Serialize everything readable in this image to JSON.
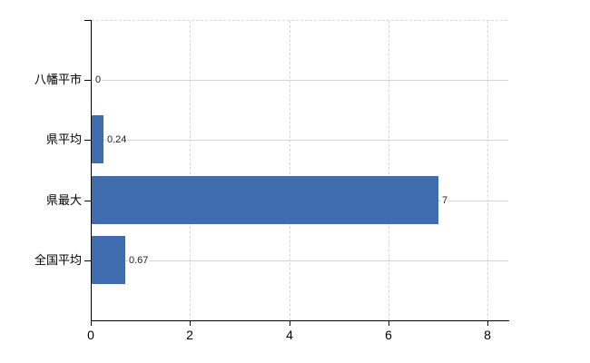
{
  "chart": {
    "background": "#ffffff",
    "bar_color": "#3f6cae",
    "axis_color": "#000000",
    "gridline_color": "#d4d4d4",
    "category_label_color": "#000000",
    "value_label_color": "#222222"
  },
  "chart_data": {
    "type": "bar",
    "orientation": "horizontal",
    "title": "",
    "categories": [
      "八幡平市",
      "県平均",
      "県最大",
      "全国平均"
    ],
    "values": [
      0,
      0.24,
      7,
      0.67
    ],
    "value_labels": [
      "0",
      "0.24",
      "7",
      "0.67"
    ],
    "x_ticks": [
      0,
      2,
      4,
      6,
      8
    ],
    "x_tick_labels": [
      "0",
      "2",
      "4",
      "6",
      "8"
    ],
    "xlim": [
      0,
      8.4
    ],
    "grid": true,
    "legend": false,
    "xlabel": "",
    "ylabel": ""
  }
}
